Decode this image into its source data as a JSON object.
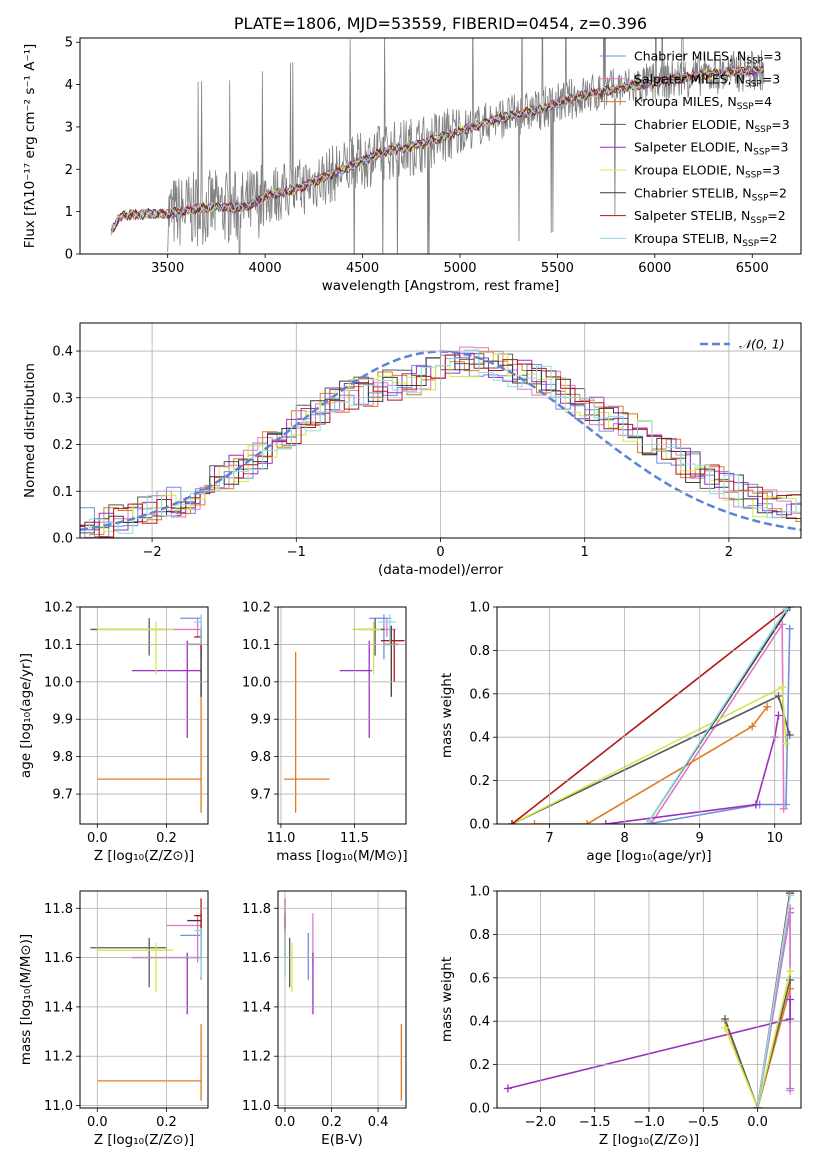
{
  "colors": {
    "chabrier_miles": "#6f8fe0",
    "salpeter_miles": "#e377c2",
    "kroupa_miles": "#e07b20",
    "chabrier_elodie": "#5a5a5a",
    "salpeter_elodie": "#9b30c0",
    "kroupa_elodie": "#d4e84a",
    "chabrier_stelib": "#3a3a3a",
    "salpeter_stelib": "#b01818",
    "kroupa_stelib": "#8fdce6",
    "data": "#808080",
    "normal": "#5b84d6"
  },
  "chart_data": [
    {
      "id": "spectrum",
      "type": "line",
      "title": "PLATE=1806, MJD=53559, FIBERID=0454, z=0.396",
      "xlabel": "wavelength [Angstrom, rest frame]",
      "ylabel": "Flux [fλ10⁻¹⁷ erg cm⁻² s⁻¹ A⁻¹]",
      "xlim": [
        3050,
        6750
      ],
      "ylim": [
        0,
        5.1
      ],
      "xticks": [
        3500,
        4000,
        4500,
        5000,
        5500,
        6000,
        6500
      ],
      "yticks": [
        0,
        1,
        2,
        3,
        4,
        5
      ],
      "legend_position": "upper right",
      "legend": [
        {
          "label": "Chabrier MILES, N",
          "sub": "SSP",
          "suffix": "=3",
          "color_key": "chabrier_miles"
        },
        {
          "label": "Salpeter MILES, N",
          "sub": "SSP",
          "suffix": "=3",
          "color_key": "salpeter_miles"
        },
        {
          "label": "Kroupa MILES, N",
          "sub": "SSP",
          "suffix": "=4",
          "color_key": "kroupa_miles"
        },
        {
          "label": "Chabrier ELODIE, N",
          "sub": "SSP",
          "suffix": "=3",
          "color_key": "chabrier_elodie"
        },
        {
          "label": "Salpeter ELODIE, N",
          "sub": "SSP",
          "suffix": "=3",
          "color_key": "salpeter_elodie"
        },
        {
          "label": "Kroupa ELODIE, N",
          "sub": "SSP",
          "suffix": "=3",
          "color_key": "kroupa_elodie"
        },
        {
          "label": "Chabrier STELIB, N",
          "sub": "SSP",
          "suffix": "=2",
          "color_key": "chabrier_stelib"
        },
        {
          "label": "Salpeter STELIB, N",
          "sub": "SSP",
          "suffix": "=2",
          "color_key": "salpeter_stelib"
        },
        {
          "label": "Kroupa STELIB, N",
          "sub": "SSP",
          "suffix": "=2",
          "color_key": "kroupa_stelib"
        }
      ],
      "model_continuum": [
        [
          3200,
          0.5
        ],
        [
          3260,
          0.9
        ],
        [
          3400,
          0.95
        ],
        [
          3500,
          0.95
        ],
        [
          3700,
          1.1
        ],
        [
          3900,
          1.1
        ],
        [
          4000,
          1.35
        ],
        [
          4200,
          1.6
        ],
        [
          4400,
          2.0
        ],
        [
          4600,
          2.4
        ],
        [
          4800,
          2.6
        ],
        [
          5000,
          2.9
        ],
        [
          5200,
          3.2
        ],
        [
          5400,
          3.4
        ],
        [
          5600,
          3.7
        ],
        [
          5800,
          3.9
        ],
        [
          6000,
          4.05
        ],
        [
          6200,
          4.2
        ],
        [
          6400,
          4.3
        ],
        [
          6560,
          4.35
        ]
      ]
    },
    {
      "id": "residuals",
      "type": "line",
      "xlabel": "(data-model)/error",
      "ylabel": "Normed distribution",
      "xlim": [
        -2.5,
        2.5
      ],
      "ylim": [
        0,
        0.46
      ],
      "xticks": [
        -2,
        -1,
        0,
        1,
        2
      ],
      "yticks": [
        0.0,
        0.1,
        0.2,
        0.3,
        0.4
      ],
      "legend_position": "upper right",
      "legend": [
        {
          "label": "𝒩(0, 1)",
          "color_key": "normal"
        }
      ],
      "histogram_envelope": [
        [
          -2.5,
          0.03
        ],
        [
          -2.2,
          0.04
        ],
        [
          -2.0,
          0.06
        ],
        [
          -1.8,
          0.08
        ],
        [
          -1.6,
          0.11
        ],
        [
          -1.4,
          0.15
        ],
        [
          -1.2,
          0.19
        ],
        [
          -1.0,
          0.24
        ],
        [
          -0.8,
          0.28
        ],
        [
          -0.6,
          0.31
        ],
        [
          -0.4,
          0.32
        ],
        [
          -0.2,
          0.34
        ],
        [
          0.0,
          0.36
        ],
        [
          0.2,
          0.38
        ],
        [
          0.4,
          0.37
        ],
        [
          0.6,
          0.35
        ],
        [
          0.8,
          0.32
        ],
        [
          1.0,
          0.28
        ],
        [
          1.2,
          0.25
        ],
        [
          1.4,
          0.22
        ],
        [
          1.6,
          0.18
        ],
        [
          1.8,
          0.14
        ],
        [
          2.0,
          0.11
        ],
        [
          2.2,
          0.08
        ],
        [
          2.5,
          0.06
        ]
      ]
    },
    {
      "id": "age_vs_Z",
      "type": "scatter",
      "xlabel": "Z [log₁₀(Z/Z⊙)]",
      "ylabel": "age  [log₁₀(age/yr)]",
      "xlim": [
        -0.05,
        0.32
      ],
      "ylim": [
        9.62,
        10.2
      ],
      "xticks": [
        0.0,
        0.2
      ],
      "yticks": [
        9.7,
        9.8,
        9.9,
        10.0,
        10.1,
        10.2
      ]
    },
    {
      "id": "age_vs_mass",
      "type": "scatter",
      "xlabel": "mass [log₁₀(M/M⊙)]",
      "ylabel": "",
      "xlim": [
        10.98,
        11.85
      ],
      "ylim": [
        9.62,
        10.2
      ],
      "xticks": [
        11.0,
        11.5
      ],
      "yticks": [
        9.7,
        9.8,
        9.9,
        10.0,
        10.1,
        10.2
      ]
    },
    {
      "id": "mass_weight_vs_age",
      "type": "line",
      "xlabel": "age  [log₁₀(age/yr)]",
      "ylabel": "mass weight",
      "xlim": [
        6.3,
        10.35
      ],
      "ylim": [
        0,
        1.0
      ],
      "xticks": [
        7,
        8,
        9,
        10
      ],
      "yticks": [
        0.0,
        0.2,
        0.4,
        0.6,
        0.8,
        1.0
      ]
    },
    {
      "id": "mass_vs_Z",
      "type": "scatter",
      "xlabel": "Z [log₁₀(Z/Z⊙)]",
      "ylabel": "mass [log₁₀(M/M⊙)]",
      "xlim": [
        -0.05,
        0.32
      ],
      "ylim": [
        10.99,
        11.87
      ],
      "xticks": [
        0.0,
        0.2
      ],
      "yticks": [
        11.0,
        11.2,
        11.4,
        11.6,
        11.8
      ]
    },
    {
      "id": "mass_vs_ebv",
      "type": "scatter",
      "xlabel": "E(B-V)",
      "ylabel": "",
      "xlim": [
        -0.03,
        0.52
      ],
      "ylim": [
        10.99,
        11.87
      ],
      "xticks": [
        0.0,
        0.2,
        0.4
      ],
      "yticks": [
        11.0,
        11.2,
        11.4,
        11.6,
        11.8
      ]
    },
    {
      "id": "mass_weight_vs_Z",
      "type": "line",
      "xlabel": "Z [log₁₀(Z/Z⊙)]",
      "ylabel": "mass weight",
      "xlim": [
        -2.4,
        0.4
      ],
      "ylim": [
        0,
        1.0
      ],
      "xticks": [
        -2.0,
        -1.5,
        -1.0,
        -0.5,
        0.0
      ],
      "yticks": [
        0.0,
        0.2,
        0.4,
        0.6,
        0.8,
        1.0
      ]
    }
  ],
  "error_bars": {
    "age_vs_Z": [
      {
        "c": "chabrier_miles",
        "x": 0.3,
        "xe": [
          0.24,
          0.3
        ],
        "y": 10.17,
        "ye": [
          10.06,
          10.18
        ]
      },
      {
        "c": "salpeter_miles",
        "x": 0.29,
        "xe": [
          0.2,
          0.3
        ],
        "y": 10.14,
        "ye": [
          10.12,
          10.17
        ]
      },
      {
        "c": "kroupa_miles",
        "x": 0.3,
        "xe": [
          0.0,
          0.3
        ],
        "y": 9.74,
        "ye": [
          9.65,
          10.14
        ]
      },
      {
        "c": "chabrier_elodie",
        "x": 0.15,
        "xe": [
          -0.02,
          0.2
        ],
        "y": 10.14,
        "ye": [
          10.07,
          10.17
        ]
      },
      {
        "c": "salpeter_elodie",
        "x": 0.26,
        "xe": [
          0.1,
          0.3
        ],
        "y": 10.03,
        "ye": [
          9.85,
          10.11
        ]
      },
      {
        "c": "kroupa_elodie",
        "x": 0.17,
        "xe": [
          0.0,
          0.22
        ],
        "y": 10.14,
        "ye": [
          10.02,
          10.16
        ]
      },
      {
        "c": "chabrier_stelib",
        "x": 0.3,
        "xe": [
          0.26,
          0.3
        ],
        "y": 10.1,
        "ye": [
          9.96,
          10.15
        ]
      },
      {
        "c": "salpeter_stelib",
        "x": 0.3,
        "xe": [
          0.28,
          0.3
        ],
        "y": 10.12,
        "ye": [
          10.08,
          10.14
        ]
      },
      {
        "c": "kroupa_stelib",
        "x": 0.3,
        "xe": [
          0.28,
          0.3
        ],
        "y": 10.16,
        "ye": [
          10.1,
          10.18
        ]
      }
    ],
    "age_vs_mass": [
      {
        "c": "chabrier_miles",
        "x": 11.7,
        "xe": [
          11.6,
          11.75
        ],
        "y": 10.17,
        "ye": [
          10.06,
          10.18
        ]
      },
      {
        "c": "salpeter_miles",
        "x": 11.72,
        "xe": [
          11.65,
          11.78
        ],
        "y": 10.14,
        "ye": [
          10.12,
          10.17
        ]
      },
      {
        "c": "kroupa_miles",
        "x": 11.1,
        "xe": [
          11.02,
          11.33
        ],
        "y": 9.74,
        "ye": [
          9.65,
          10.08
        ]
      },
      {
        "c": "chabrier_elodie",
        "x": 11.64,
        "xe": [
          11.52,
          11.7
        ],
        "y": 10.14,
        "ye": [
          10.07,
          10.17
        ]
      },
      {
        "c": "salpeter_elodie",
        "x": 11.6,
        "xe": [
          11.4,
          11.62
        ],
        "y": 10.03,
        "ye": [
          9.85,
          10.11
        ]
      },
      {
        "c": "kroupa_elodie",
        "x": 11.63,
        "xe": [
          11.48,
          11.68
        ],
        "y": 10.14,
        "ye": [
          10.02,
          10.16
        ]
      },
      {
        "c": "chabrier_stelib",
        "x": 11.75,
        "xe": [
          11.7,
          11.8
        ],
        "y": 10.1,
        "ye": [
          9.96,
          10.15
        ]
      },
      {
        "c": "salpeter_stelib",
        "x": 11.77,
        "xe": [
          11.68,
          11.84
        ],
        "y": 10.11,
        "ye": [
          10.0,
          10.14
        ]
      },
      {
        "c": "kroupa_stelib",
        "x": 11.74,
        "xe": [
          11.66,
          11.78
        ],
        "y": 10.16,
        "ye": [
          10.1,
          10.18
        ]
      }
    ],
    "mass_vs_Z": [
      {
        "c": "chabrier_miles",
        "x": 0.3,
        "xe": [
          0.24,
          0.3
        ],
        "y": 11.69,
        "ye": [
          11.51,
          11.72
        ]
      },
      {
        "c": "salpeter_miles",
        "x": 0.29,
        "xe": [
          0.2,
          0.3
        ],
        "y": 11.73,
        "ye": [
          11.58,
          11.77
        ]
      },
      {
        "c": "kroupa_miles",
        "x": 0.3,
        "xe": [
          0.0,
          0.3
        ],
        "y": 11.1,
        "ye": [
          11.02,
          11.33
        ]
      },
      {
        "c": "chabrier_elodie",
        "x": 0.15,
        "xe": [
          -0.02,
          0.2
        ],
        "y": 11.64,
        "ye": [
          11.48,
          11.68
        ]
      },
      {
        "c": "salpeter_elodie",
        "x": 0.26,
        "xe": [
          0.1,
          0.3
        ],
        "y": 11.6,
        "ye": [
          11.37,
          11.62
        ]
      },
      {
        "c": "kroupa_elodie",
        "x": 0.17,
        "xe": [
          0.0,
          0.22
        ],
        "y": 11.63,
        "ye": [
          11.46,
          11.66
        ]
      },
      {
        "c": "chabrier_stelib",
        "x": 0.3,
        "xe": [
          0.26,
          0.3
        ],
        "y": 11.75,
        "ye": [
          11.6,
          11.78
        ]
      },
      {
        "c": "salpeter_stelib",
        "x": 0.3,
        "xe": [
          0.28,
          0.3
        ],
        "y": 11.77,
        "ye": [
          11.7,
          11.84
        ]
      },
      {
        "c": "kroupa_stelib",
        "x": 0.3,
        "xe": [
          0.28,
          0.3
        ],
        "y": 11.71,
        "ye": [
          11.52,
          11.72
        ]
      }
    ],
    "mass_vs_ebv": [
      {
        "c": "chabrier_miles",
        "x": 0.1,
        "ye": [
          11.51,
          11.7
        ]
      },
      {
        "c": "salpeter_miles",
        "x": 0.12,
        "ye": [
          11.58,
          11.78
        ]
      },
      {
        "c": "kroupa_miles",
        "x": 0.5,
        "ye": [
          11.02,
          11.33
        ]
      },
      {
        "c": "chabrier_elodie",
        "x": 0.02,
        "ye": [
          11.48,
          11.68
        ]
      },
      {
        "c": "salpeter_elodie",
        "x": 0.12,
        "ye": [
          11.37,
          11.62
        ]
      },
      {
        "c": "kroupa_elodie",
        "x": 0.03,
        "ye": [
          11.46,
          11.66
        ]
      },
      {
        "c": "chabrier_stelib",
        "x": 0.0,
        "ye": [
          11.6,
          11.78
        ]
      },
      {
        "c": "salpeter_stelib",
        "x": 0.0,
        "ye": [
          11.7,
          11.84
        ]
      },
      {
        "c": "kroupa_stelib",
        "x": 0.0,
        "ye": [
          11.52,
          11.72
        ]
      }
    ]
  },
  "weight_tracks": {
    "mass_weight_vs_age": [
      {
        "c": "chabrier_miles",
        "pts": [
          [
            8.3,
            0.0
          ],
          [
            9.8,
            0.09
          ],
          [
            10.15,
            0.09
          ],
          [
            10.2,
            0.9
          ]
        ]
      },
      {
        "c": "salpeter_miles",
        "pts": [
          [
            8.35,
            0.0
          ],
          [
            10.1,
            0.92
          ],
          [
            10.12,
            0.07
          ]
        ]
      },
      {
        "c": "kroupa_miles",
        "pts": [
          [
            6.8,
            0.0
          ],
          [
            7.5,
            0.0
          ],
          [
            9.7,
            0.45
          ],
          [
            9.9,
            0.54
          ]
        ]
      },
      {
        "c": "chabrier_elodie",
        "pts": [
          [
            6.5,
            0.0
          ],
          [
            10.05,
            0.59
          ],
          [
            10.2,
            0.41
          ]
        ]
      },
      {
        "c": "salpeter_elodie",
        "pts": [
          [
            7.75,
            0.0
          ],
          [
            9.75,
            0.09
          ],
          [
            10.0,
            0.4
          ],
          [
            10.05,
            0.5
          ]
        ]
      },
      {
        "c": "kroupa_elodie",
        "pts": [
          [
            6.5,
            0.0
          ],
          [
            10.1,
            0.63
          ],
          [
            10.15,
            0.37
          ]
        ]
      },
      {
        "c": "chabrier_stelib",
        "pts": [
          [
            8.3,
            0.0
          ],
          [
            10.2,
            1.0
          ]
        ]
      },
      {
        "c": "salpeter_stelib",
        "pts": [
          [
            6.5,
            0.0
          ],
          [
            10.15,
            0.99
          ]
        ]
      },
      {
        "c": "kroupa_stelib",
        "pts": [
          [
            8.3,
            0.0
          ],
          [
            10.15,
            0.99
          ]
        ]
      }
    ],
    "mass_weight_vs_Z": [
      {
        "c": "chabrier_miles",
        "pts": [
          [
            0.0,
            0.0
          ],
          [
            0.3,
            0.9
          ],
          [
            0.3,
            0.09
          ]
        ]
      },
      {
        "c": "salpeter_miles",
        "pts": [
          [
            0.0,
            0.0
          ],
          [
            0.3,
            0.92
          ],
          [
            0.3,
            0.08
          ]
        ]
      },
      {
        "c": "kroupa_miles",
        "pts": [
          [
            -0.3,
            0.4
          ],
          [
            0.0,
            0.0
          ],
          [
            0.3,
            0.55
          ]
        ]
      },
      {
        "c": "chabrier_elodie",
        "pts": [
          [
            -0.3,
            0.41
          ],
          [
            0.0,
            0.0
          ],
          [
            0.3,
            0.59
          ]
        ]
      },
      {
        "c": "salpeter_elodie",
        "pts": [
          [
            -2.3,
            0.09
          ],
          [
            0.3,
            0.41
          ],
          [
            0.3,
            0.5
          ]
        ]
      },
      {
        "c": "kroupa_elodie",
        "pts": [
          [
            -0.3,
            0.37
          ],
          [
            0.0,
            0.0
          ],
          [
            0.3,
            0.63
          ]
        ]
      },
      {
        "c": "chabrier_stelib",
        "pts": [
          [
            0.0,
            0.0
          ],
          [
            0.3,
            1.0
          ]
        ]
      },
      {
        "c": "salpeter_stelib",
        "pts": [
          [
            0.0,
            0.0
          ],
          [
            0.3,
            0.99
          ]
        ]
      },
      {
        "c": "kroupa_stelib",
        "pts": [
          [
            0.0,
            0.0
          ],
          [
            0.3,
            0.98
          ]
        ]
      }
    ]
  }
}
